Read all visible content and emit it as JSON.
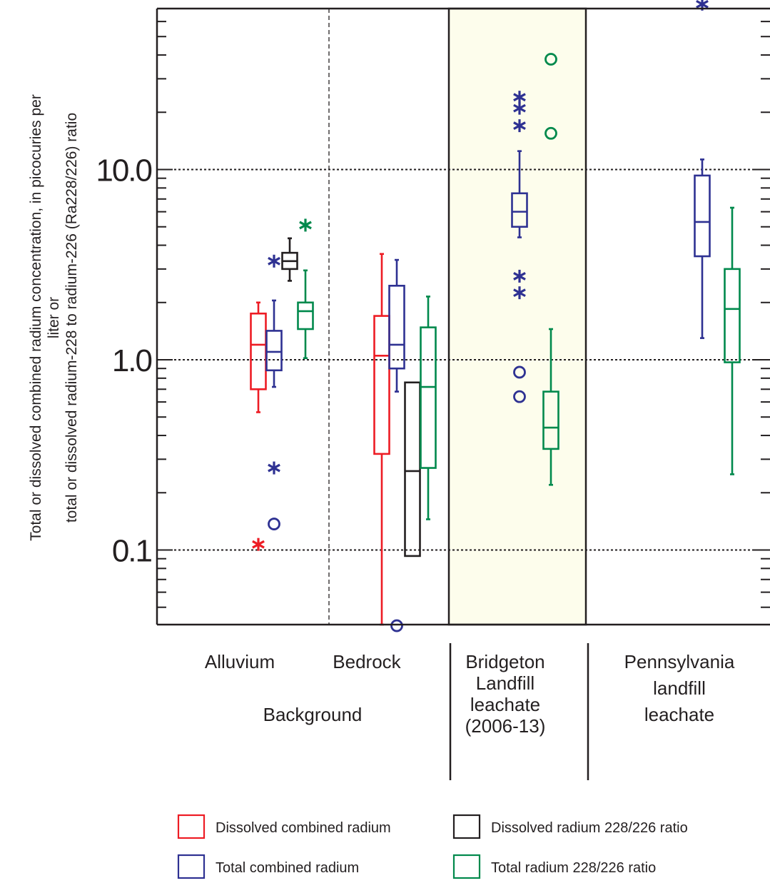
{
  "chart_data": {
    "type": "box",
    "ylabel": [
      "Total or dissolved combined radium concentration, in picocuries per",
      "liter or",
      "total or dissolved radium-228 to radium-226 (Ra228/226) ratio"
    ],
    "y_scale": "log",
    "ylim": [
      0.04,
      80
    ],
    "yticks": [
      {
        "value": 0.1,
        "label": "0.1"
      },
      {
        "value": 1.0,
        "label": "1.0"
      },
      {
        "value": 10.0,
        "label": "10.0"
      }
    ],
    "grid": "dotted horizontal at major ticks",
    "groups": [
      {
        "label": [
          "Alluvium"
        ]
      },
      {
        "label": [
          "Bedrock"
        ]
      },
      {
        "label": [
          "Bridgeton",
          "Landfill",
          "leachate",
          "(2006-13)"
        ],
        "highlighted": true,
        "highlight_color": "#fdfdec"
      },
      {
        "label": [
          "Pennsylvania",
          "landfill",
          "leachate"
        ]
      }
    ],
    "super_group_label": "Background",
    "series": [
      {
        "name": "Dissolved combined radium",
        "color": "#ed1c24"
      },
      {
        "name": "Total combined radium",
        "color": "#2e3192"
      },
      {
        "name": "Dissolved radium 228/226 ratio",
        "color": "#231f20"
      },
      {
        "name": "Total radium 228/226 ratio",
        "color": "#00894c"
      }
    ],
    "boxes": [
      {
        "group": 0,
        "series": 0,
        "whisker_low": 0.53,
        "q1": 0.7,
        "median": 1.2,
        "q3": 1.75,
        "whisker_high": 2.0,
        "outliers": [
          {
            "value": 0.107,
            "marker": "star"
          }
        ]
      },
      {
        "group": 0,
        "series": 1,
        "whisker_low": 0.72,
        "q1": 0.88,
        "median": 1.1,
        "q3": 1.42,
        "whisker_high": 2.05,
        "outliers": [
          {
            "value": 3.3,
            "marker": "star"
          },
          {
            "value": 0.27,
            "marker": "star"
          },
          {
            "value": 0.137,
            "marker": "circle"
          }
        ]
      },
      {
        "group": 0,
        "series": 2,
        "whisker_low": 2.6,
        "q1": 3.0,
        "median": 3.3,
        "q3": 3.65,
        "whisker_high": 4.35,
        "outliers": []
      },
      {
        "group": 0,
        "series": 3,
        "whisker_low": 1.02,
        "q1": 1.45,
        "median": 1.8,
        "q3": 2.0,
        "whisker_high": 2.95,
        "outliers": [
          {
            "value": 5.1,
            "marker": "star"
          }
        ]
      },
      {
        "group": 1,
        "series": 0,
        "whisker_low": 0.04,
        "q1": 0.32,
        "median": 1.05,
        "q3": 1.7,
        "whisker_high": 3.6,
        "outliers": []
      },
      {
        "group": 1,
        "series": 1,
        "whisker_low": 0.68,
        "q1": 0.9,
        "median": 1.2,
        "q3": 2.45,
        "whisker_high": 3.35,
        "outliers": [
          {
            "value": 0.04,
            "marker": "circle"
          }
        ]
      },
      {
        "group": 1,
        "series": 2,
        "whisker_low": null,
        "q1": 0.093,
        "median": 0.26,
        "q3": 0.76,
        "whisker_high": null,
        "outliers": []
      },
      {
        "group": 1,
        "series": 3,
        "whisker_low": 0.145,
        "q1": 0.27,
        "median": 0.72,
        "q3": 1.48,
        "whisker_high": 2.15,
        "outliers": []
      },
      {
        "group": 2,
        "series": 1,
        "whisker_low": 4.4,
        "q1": 5.0,
        "median": 6.0,
        "q3": 7.5,
        "whisker_high": 12.5,
        "outliers": [
          {
            "value": 17.0,
            "marker": "star"
          },
          {
            "value": 21.0,
            "marker": "star"
          },
          {
            "value": 24.0,
            "marker": "star"
          },
          {
            "value": 2.75,
            "marker": "star"
          },
          {
            "value": 2.25,
            "marker": "star"
          },
          {
            "value": 0.86,
            "marker": "circle"
          },
          {
            "value": 0.64,
            "marker": "circle"
          }
        ]
      },
      {
        "group": 2,
        "series": 3,
        "whisker_low": 0.22,
        "q1": 0.34,
        "median": 0.44,
        "q3": 0.68,
        "whisker_high": 1.45,
        "outliers": [
          {
            "value": 38.0,
            "marker": "circle"
          },
          {
            "value": 15.5,
            "marker": "circle"
          }
        ]
      },
      {
        "group": 3,
        "series": 1,
        "whisker_low": 1.3,
        "q1": 3.5,
        "median": 5.3,
        "q3": 9.3,
        "whisker_high": 11.3,
        "outliers": [
          {
            "value": 74.0,
            "marker": "star"
          }
        ]
      },
      {
        "group": 3,
        "series": 3,
        "whisker_low": 0.25,
        "q1": 0.97,
        "median": 1.85,
        "q3": 3.0,
        "whisker_high": 6.3,
        "outliers": []
      }
    ]
  }
}
